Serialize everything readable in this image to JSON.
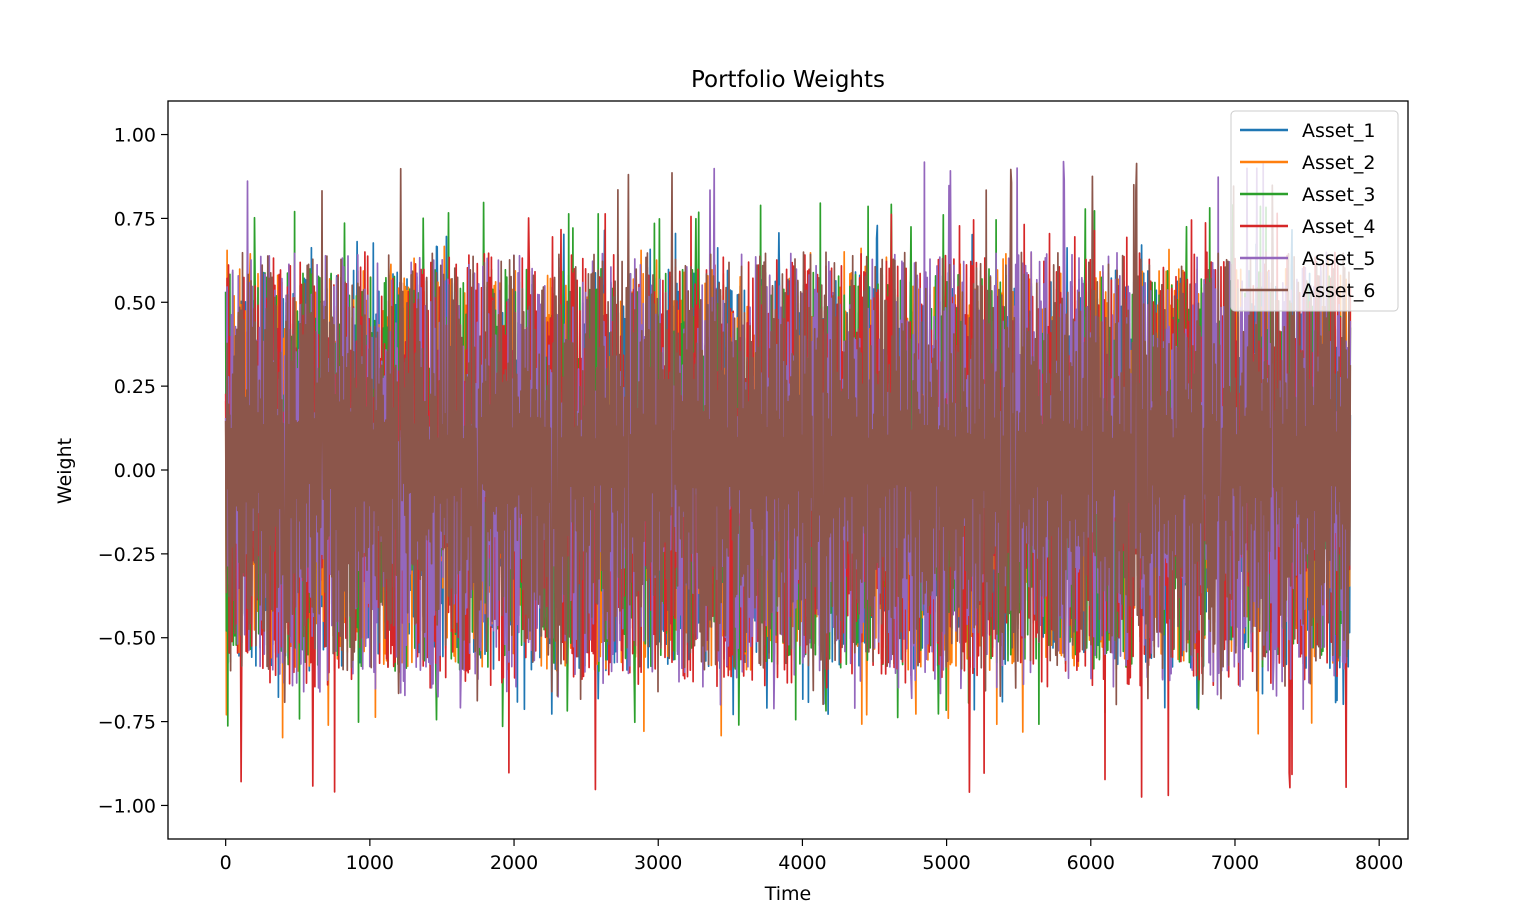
{
  "chart_data": {
    "type": "line",
    "title": "Portfolio Weights",
    "xlabel": "Time",
    "ylabel": "Weight",
    "xlim": [
      -400,
      8200
    ],
    "ylim": [
      -1.1,
      1.1
    ],
    "x_ticks": [
      0,
      1000,
      2000,
      3000,
      4000,
      5000,
      6000,
      7000,
      8000
    ],
    "x_tick_labels": [
      "0",
      "1000",
      "2000",
      "3000",
      "4000",
      "5000",
      "6000",
      "7000",
      "8000"
    ],
    "y_ticks": [
      -1.0,
      -0.75,
      -0.5,
      -0.25,
      0.0,
      0.25,
      0.5,
      0.75,
      1.0
    ],
    "y_tick_labels": [
      "−1.00",
      "−0.75",
      "−0.50",
      "−0.25",
      "0.00",
      "0.25",
      "0.50",
      "0.75",
      "1.00"
    ],
    "x_range_data": [
      0,
      7800
    ],
    "grid": false,
    "legend_position": "top-right",
    "series": [
      {
        "name": "Asset_1",
        "color": "#1f77b4",
        "typical_range": [
          -0.6,
          0.6
        ],
        "extremes": [
          -0.73,
          0.73
        ]
      },
      {
        "name": "Asset_2",
        "color": "#ff7f0e",
        "typical_range": [
          -0.6,
          0.6
        ],
        "extremes": [
          -0.8,
          0.67
        ]
      },
      {
        "name": "Asset_3",
        "color": "#2ca02c",
        "typical_range": [
          -0.6,
          0.6
        ],
        "extremes": [
          -0.77,
          0.8
        ]
      },
      {
        "name": "Asset_4",
        "color": "#d62728",
        "typical_range": [
          -0.65,
          0.65
        ],
        "extremes": [
          -1.0,
          0.77
        ]
      },
      {
        "name": "Asset_5",
        "color": "#9467bd",
        "typical_range": [
          -0.65,
          0.65
        ],
        "extremes": [
          -0.72,
          0.92
        ]
      },
      {
        "name": "Asset_6",
        "color": "#8c564b",
        "typical_range": [
          -0.6,
          0.65
        ],
        "extremes": [
          -0.7,
          0.92
        ]
      }
    ]
  }
}
